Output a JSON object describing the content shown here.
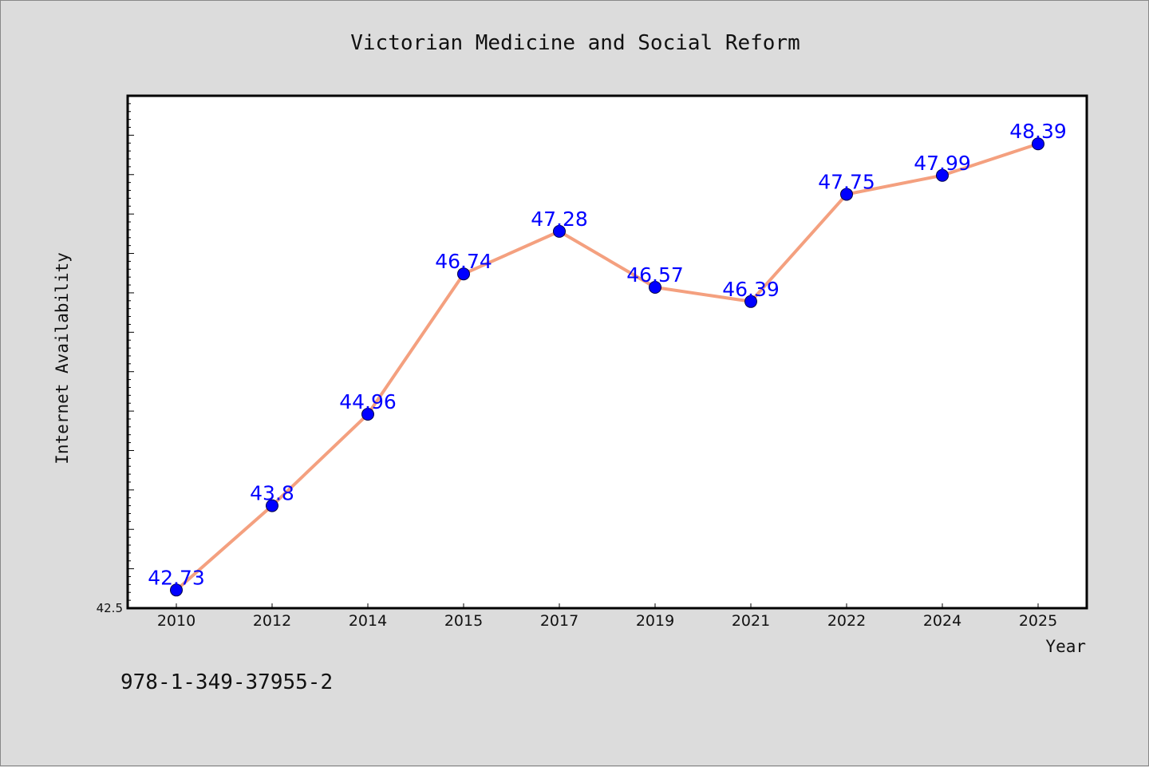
{
  "chart_data": {
    "type": "line",
    "title": "Victorian Medicine and Social Reform",
    "xlabel": "Year",
    "ylabel": "Internet Availability",
    "categories": [
      "2010",
      "2012",
      "2014",
      "2015",
      "2017",
      "2019",
      "2021",
      "2022",
      "2024",
      "2025"
    ],
    "values": [
      42.73,
      43.8,
      44.96,
      46.74,
      47.28,
      46.57,
      46.39,
      47.75,
      47.99,
      48.39
    ],
    "data_labels": [
      "42.73",
      "43.8",
      "44.96",
      "46.74",
      "47.28",
      "46.57",
      "46.39",
      "47.75",
      "47.99",
      "48.39"
    ],
    "ylim": [
      42.5,
      49.0
    ],
    "y_tick_labels": [
      "42.5"
    ],
    "grid": false,
    "legend": "none",
    "line_color": "#f4a07f",
    "marker_color": "#0000ff"
  },
  "footer": {
    "isbn": "978-1-349-37955-2"
  }
}
